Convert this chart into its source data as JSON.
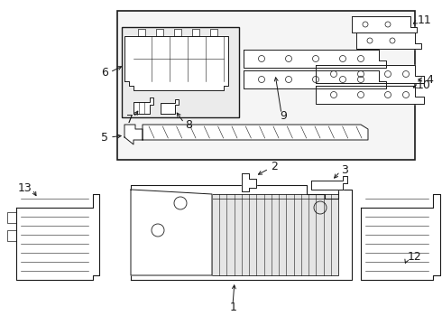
{
  "bg_color": "#ffffff",
  "line_color": "#1a1a1a",
  "fig_width": 4.9,
  "fig_height": 3.6,
  "dpi": 100,
  "font_size": 9
}
